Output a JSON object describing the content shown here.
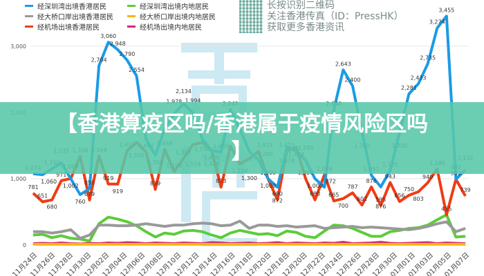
{
  "legend": [
    {
      "label": "经深圳湾出境香港居民",
      "color": "#1a9be6"
    },
    {
      "label": "经深圳湾出境内地居民",
      "color": "#5ccc3a"
    },
    {
      "label": "经大桥口岸出境香港居民",
      "color": "#999999"
    },
    {
      "label": "经大桥口岸出境内地居民",
      "color": "#f5b800"
    },
    {
      "label": "经机场出境香港居民",
      "color": "#f03c14"
    },
    {
      "label": "经机场出境内地居民",
      "color": "#d6247a"
    }
  ],
  "promo": {
    "line1": "长按识别二维码",
    "line2": "关注香港传真（ID：PressHK）",
    "line3": "获取更多香港资讯"
  },
  "watermark": "香港",
  "banner": {
    "line1": "【香港算疫区吗/香港属于疫情风险区吗",
    "line2": "】"
  },
  "chart_data": {
    "type": "line",
    "ylim": [
      0,
      3500
    ],
    "yticks": [
      "0",
      "1,000",
      "2,000",
      "3,000"
    ],
    "ytick_values": [
      0,
      1000,
      2000,
      3000
    ],
    "grid": true,
    "legend_position": "top-left",
    "xtick_labels": [
      "11月24日",
      "11月26日",
      "11月28日",
      "11月30日",
      "12月02日",
      "12月04日",
      "12月06日",
      "12月08日",
      "12月10日",
      "12月12日",
      "12月14日",
      "12月16日",
      "12月18日",
      "12月20日",
      "12月18日",
      "12月20日",
      "12月22日",
      "12月24日",
      "12月26日",
      "12月28日",
      "12月30日",
      "01月01日",
      "01月03日",
      "01月05日",
      "01月07日"
    ],
    "series": [
      {
        "name": "经深圳湾出境香港居民",
        "color": "#1a9be6",
        "labeled": true,
        "values": [
          1074,
          1060,
          1150,
          1235,
          1000,
          760,
          850,
          2704,
          3060,
          2948,
          2790,
          2554,
          1600,
          1354,
          1750,
          1978,
          2134,
          1994,
          1600,
          1426,
          1400,
          2042,
          1750,
          1415,
          1280,
          1000,
          872,
          1474,
          1415,
          1280,
          1000,
          872,
          2040,
          2643,
          2400,
          1700,
          1051,
          876,
          1125,
          1700,
          2281,
          2433,
          2735,
          3274,
          3455,
          992,
          1132
        ]
      },
      {
        "name": "经机场出境香港居民",
        "color": "#f03c14",
        "labeled": true,
        "values": [
          781,
          651,
          680,
          971,
          1002,
          1338,
          679,
          1344,
          919,
          919,
          1423,
          1550,
          1407,
          839,
          1444,
          1108,
          1307,
          1514,
          1550,
          1426,
          873,
          1490,
          1224,
          1300,
          1415,
          1000,
          680,
          1415,
          1474,
          1000,
          680,
          1059,
          665,
          700,
          787,
          602,
          876,
          595,
          943,
          656,
          750,
          803,
          940,
          1146,
          455,
          992,
          739
        ]
      },
      {
        "name": "经大桥口岸出境香港居民",
        "color": "#999999",
        "labeled": false,
        "values": [
          200,
          200,
          180,
          200,
          230,
          100,
          150,
          300,
          300,
          290,
          290,
          300,
          320,
          300,
          280,
          300,
          300,
          320,
          330,
          320,
          290,
          300,
          360,
          250,
          300,
          300,
          280,
          290,
          270,
          280,
          290,
          250,
          260,
          270,
          280,
          260,
          270,
          260,
          250,
          240,
          230,
          250,
          280,
          320,
          350,
          200,
          250
        ]
      },
      {
        "name": "经深圳湾出境内地居民",
        "color": "#5ccc3a",
        "labeled": false,
        "values": [
          150,
          160,
          110,
          140,
          100,
          90,
          60,
          320,
          420,
          390,
          350,
          290,
          200,
          120,
          180,
          160,
          210,
          220,
          200,
          150,
          110,
          180,
          220,
          190,
          160,
          170,
          140,
          210,
          190,
          130,
          110,
          210,
          300,
          290,
          250,
          190,
          130,
          130,
          200,
          220,
          250,
          260,
          300,
          380,
          455,
          120,
          130
        ]
      },
      {
        "name": "经大桥口岸出境内地居民",
        "color": "#f5b800",
        "labeled": false,
        "values": [
          10,
          10,
          10,
          10,
          10,
          10,
          10,
          10,
          10,
          10,
          10,
          10,
          10,
          10,
          10,
          10,
          10,
          10,
          10,
          10,
          10,
          10,
          10,
          10,
          10,
          10,
          10,
          10,
          10,
          10,
          10,
          10,
          10,
          10,
          10,
          10,
          10,
          10,
          10,
          10,
          10,
          10,
          10,
          10,
          10,
          10,
          10
        ]
      },
      {
        "name": "经机场出境内地居民",
        "color": "#d6247a",
        "labeled": false,
        "values": [
          20,
          25,
          20,
          30,
          20,
          15,
          25,
          20,
          30,
          25,
          35,
          30,
          20,
          30,
          25,
          20,
          30,
          25,
          20,
          35,
          30,
          20,
          25,
          30,
          20,
          25,
          35,
          20,
          30,
          25,
          20,
          30,
          25,
          40,
          20,
          25,
          30,
          40,
          25,
          20,
          25,
          30,
          35,
          20,
          30,
          25,
          20
        ]
      }
    ]
  }
}
